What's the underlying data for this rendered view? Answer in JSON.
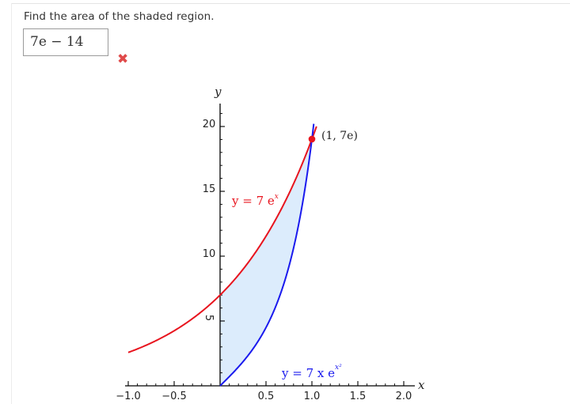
{
  "question": {
    "prompt": "Find the area of the shaded region."
  },
  "answer": {
    "value": "7e − 14",
    "status": "incorrect",
    "status_icon": "x-mark-icon",
    "status_mark": "✖"
  },
  "colors": {
    "upper_curve": "#e8141e",
    "lower_curve": "#1a1aee",
    "shaded_region": "#dcecfc",
    "incorrect": "#e04a4a"
  },
  "graph": {
    "x_axis_name": "x",
    "y_axis_name": "y",
    "x_tick_labels": [
      "−1.0",
      "−0.5",
      "0.5",
      "1.0",
      "1.5",
      "2.0"
    ],
    "y_tick_labels": [
      "5",
      "10",
      "15",
      "20"
    ],
    "upper_curve_label": {
      "main": "y = 7 e",
      "sup": "x"
    },
    "lower_curve_label": {
      "main": "y = 7 x e",
      "sup": "x²"
    },
    "intersection_label": "(1, 7e)"
  },
  "chart_data": {
    "type": "line",
    "xlim": [
      -1.0,
      2.0
    ],
    "ylim": [
      0,
      20
    ],
    "series": [
      {
        "name": "y = 7 e^x",
        "function": "7*exp(x)",
        "domain": [
          -1.0,
          1.05
        ]
      },
      {
        "name": "y = 7 x e^(x^2)",
        "function": "7*x*exp(x^2)",
        "domain": [
          0,
          1.02
        ]
      }
    ],
    "shaded_region": {
      "between": [
        "y = 7 e^x",
        "y = 7 x e^(x^2)"
      ],
      "x_range": [
        0,
        1
      ]
    },
    "intersection_point": {
      "x": 1,
      "y": 19.03,
      "label": "(1, 7e)"
    },
    "x_ticks": [
      -1.0,
      -0.5,
      0.5,
      1.0,
      1.5,
      2.0
    ],
    "y_ticks": [
      5,
      10,
      15,
      20
    ]
  }
}
